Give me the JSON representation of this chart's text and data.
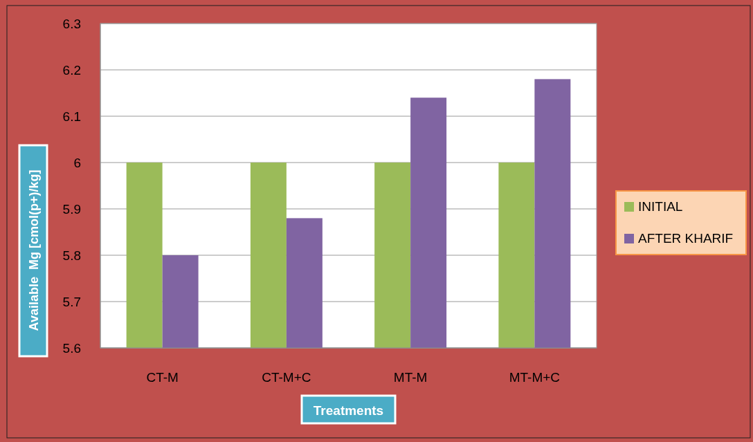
{
  "chart_data": {
    "type": "bar",
    "xlabel": "Treatments",
    "ylabel": "Available  Mg [cmol(p+)/kg]",
    "categories": [
      "CT-M",
      "CT-M+C",
      "MT-M",
      "MT-M+C"
    ],
    "series": [
      {
        "name": "INITIAL",
        "color": "#9bbb59",
        "values": [
          6.0,
          6.0,
          6.0,
          6.0
        ]
      },
      {
        "name": "AFTER KHARIF",
        "color": "#8064a2",
        "values": [
          5.8,
          5.88,
          6.14,
          6.18
        ]
      }
    ],
    "ylim": [
      5.6,
      6.3
    ],
    "yticks": [
      5.6,
      5.7,
      5.8,
      5.9,
      6,
      6.1,
      6.2,
      6.3
    ],
    "grid": "y",
    "legend": "right"
  }
}
